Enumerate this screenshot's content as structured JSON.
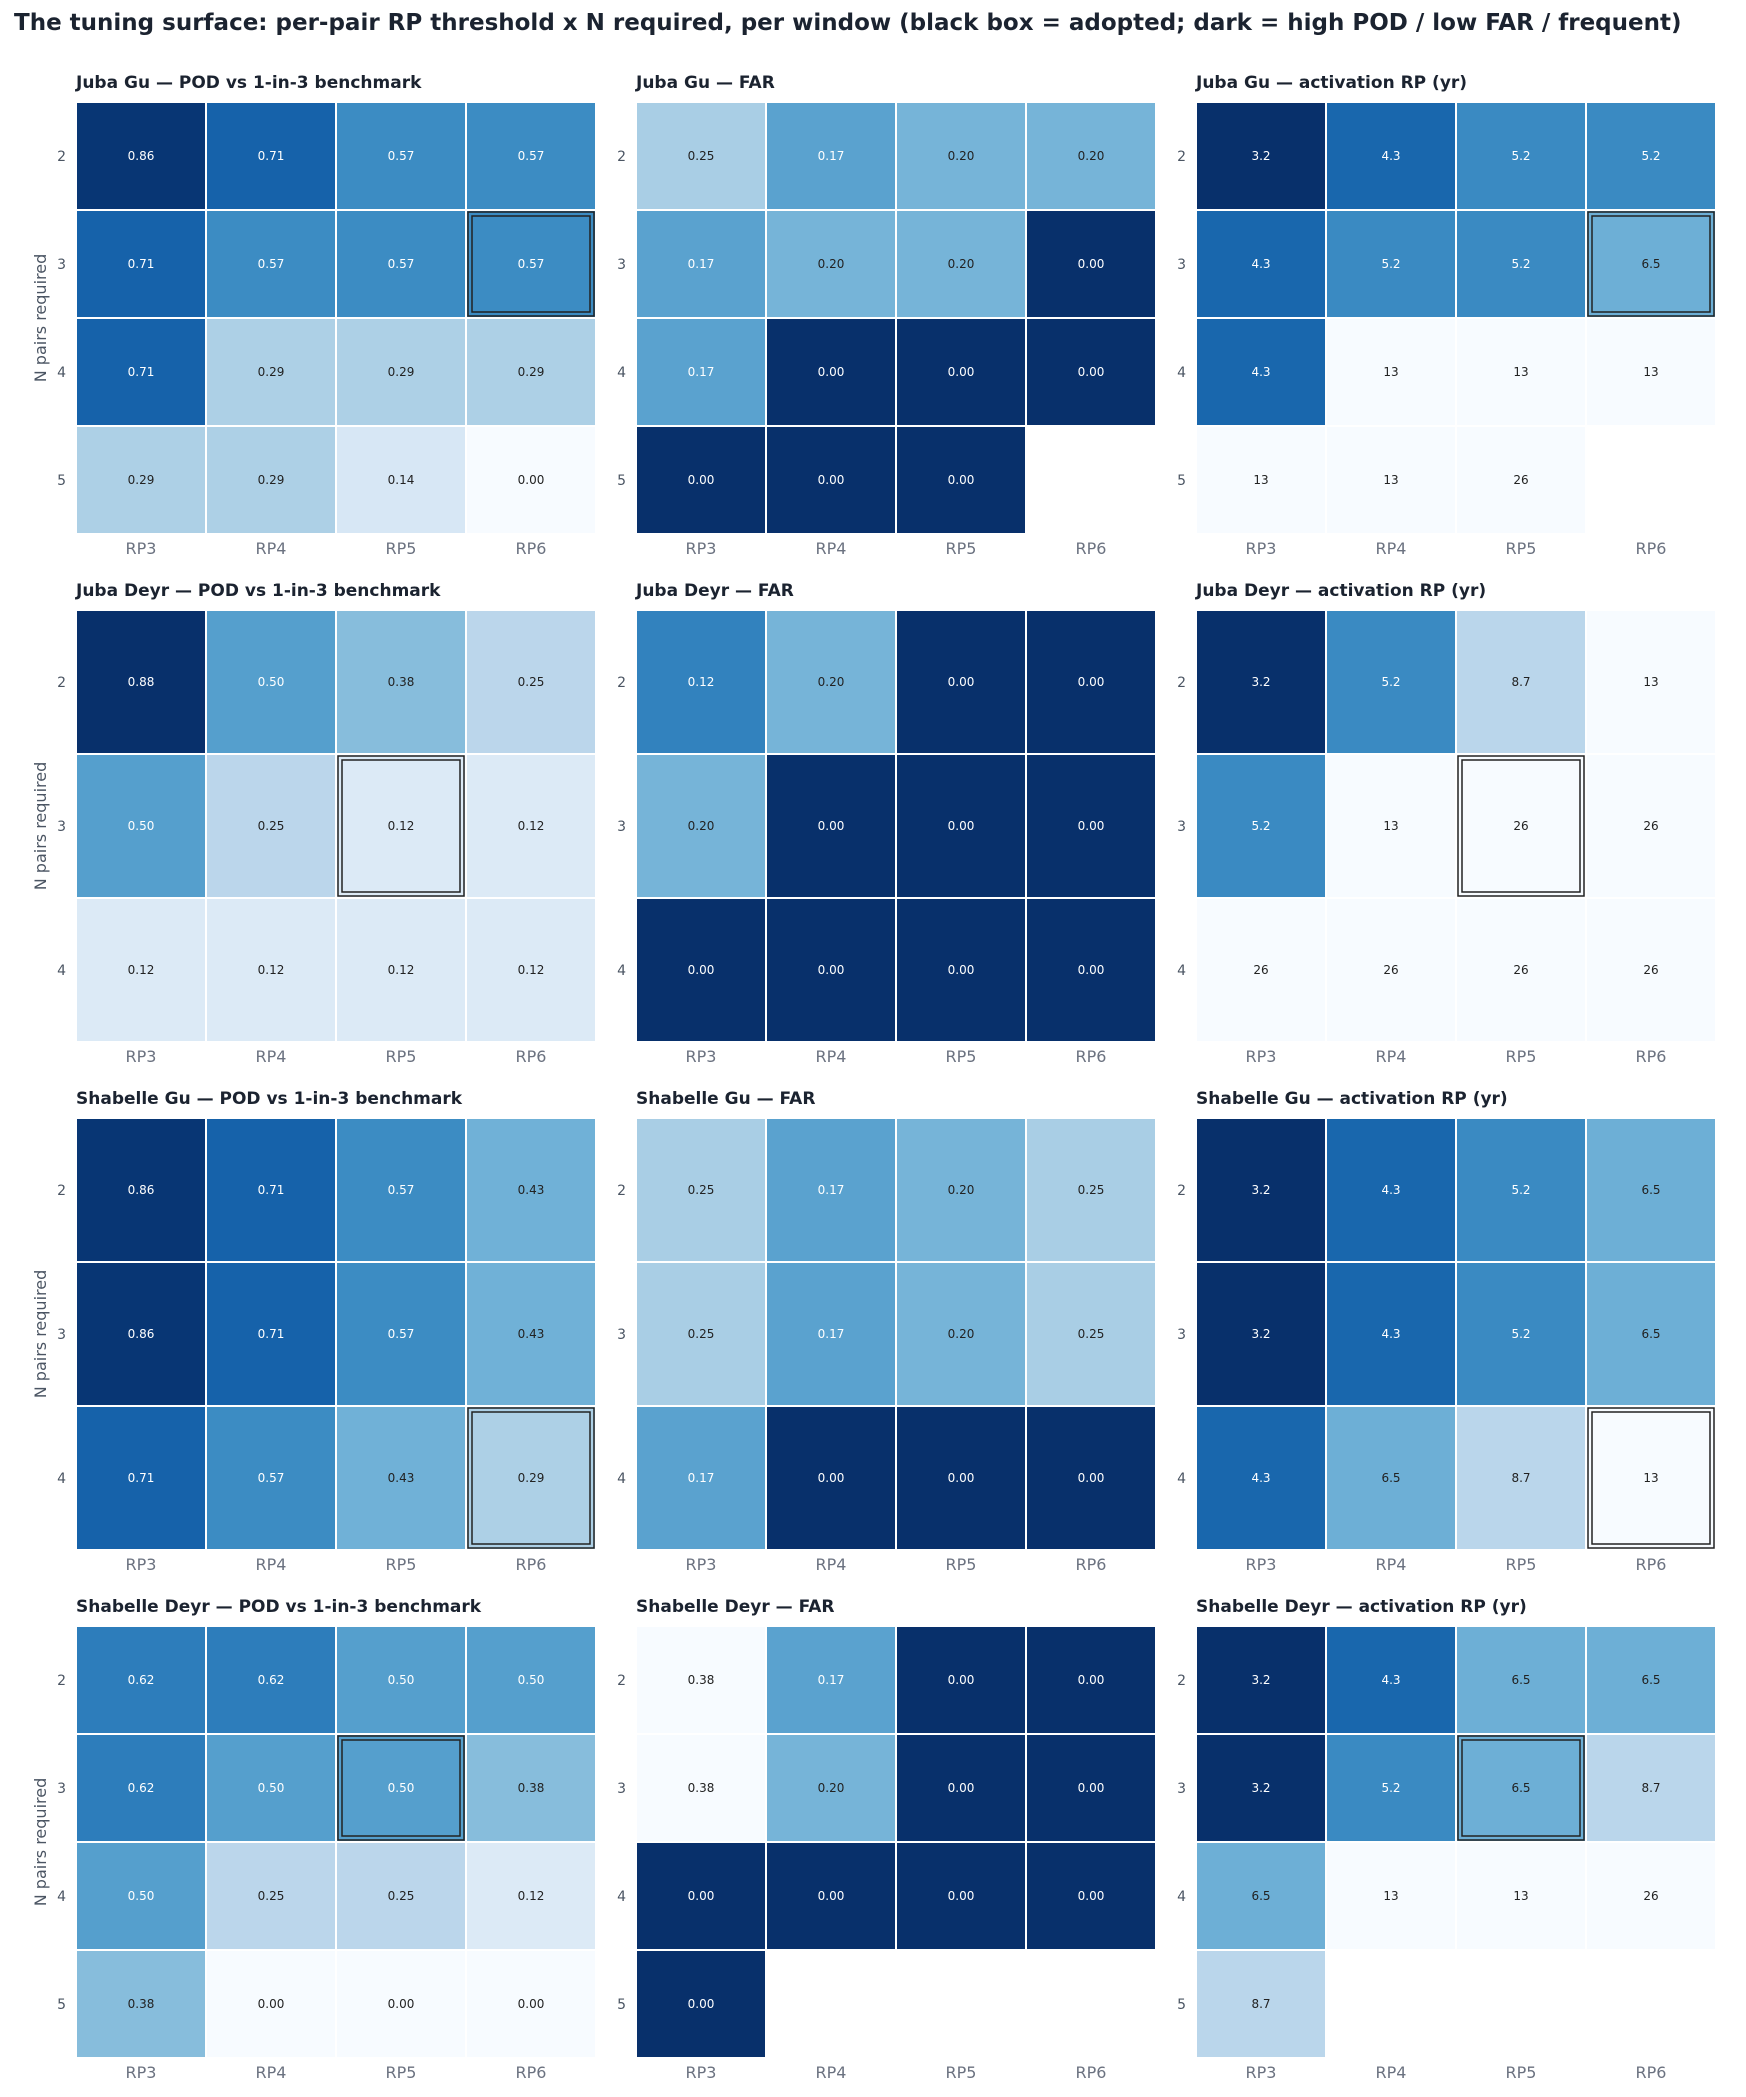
{
  "title": "The tuning surface: per-pair RP threshold x N required, per window (black box = adopted; dark = high POD / low FAR / frequent)",
  "colormap": {
    "light": "#f7fbff",
    "mid": "#6baed6",
    "dark": "#08306b",
    "grid_line": "#ffffff",
    "adopted_box": "#222222",
    "text_dark": "#222222",
    "text_light": "#ffffff"
  },
  "chart_data": [
    {
      "type": "heatmap",
      "title": "Juba Gu — POD vs 1-in-3 benchmark",
      "metric": "POD",
      "ylabel": "N pairs required",
      "x": [
        "RP3",
        "RP4",
        "RP5",
        "RP6"
      ],
      "y": [
        "2",
        "3",
        "4",
        "5"
      ],
      "values": [
        [
          0.86,
          0.71,
          0.57,
          0.57
        ],
        [
          0.71,
          0.57,
          0.57,
          0.57
        ],
        [
          0.71,
          0.29,
          0.29,
          0.29
        ],
        [
          0.29,
          0.29,
          0.14,
          0.0
        ]
      ],
      "labels": [
        [
          "0.86",
          "0.71",
          "0.57",
          "0.57"
        ],
        [
          "0.71",
          "0.57",
          "0.57",
          "0.57"
        ],
        [
          "0.71",
          "0.29",
          "0.29",
          "0.29"
        ],
        [
          "0.29",
          "0.29",
          "0.14",
          "0.00"
        ]
      ],
      "adopted": {
        "x": "RP6",
        "y": "3"
      }
    },
    {
      "type": "heatmap",
      "title": "Juba Gu — FAR",
      "metric": "FAR",
      "ylabel": "",
      "x": [
        "RP3",
        "RP4",
        "RP5",
        "RP6"
      ],
      "y": [
        "2",
        "3",
        "4",
        "5"
      ],
      "values": [
        [
          0.25,
          0.17,
          0.2,
          0.2
        ],
        [
          0.17,
          0.2,
          0.2,
          0.0
        ],
        [
          0.17,
          0.0,
          0.0,
          0.0
        ],
        [
          0.0,
          0.0,
          0.0,
          null
        ]
      ],
      "labels": [
        [
          "0.25",
          "0.17",
          "0.20",
          "0.20"
        ],
        [
          "0.17",
          "0.20",
          "0.20",
          "0.00"
        ],
        [
          "0.17",
          "0.00",
          "0.00",
          "0.00"
        ],
        [
          "0.00",
          "0.00",
          "0.00",
          ""
        ]
      ],
      "adopted": null
    },
    {
      "type": "heatmap",
      "title": "Juba Gu — activation RP (yr)",
      "metric": "RP",
      "ylabel": "",
      "x": [
        "RP3",
        "RP4",
        "RP5",
        "RP6"
      ],
      "y": [
        "2",
        "3",
        "4",
        "5"
      ],
      "values": [
        [
          3.2,
          4.3,
          5.2,
          5.2
        ],
        [
          4.3,
          5.2,
          5.2,
          6.5
        ],
        [
          4.3,
          13,
          13,
          13
        ],
        [
          13,
          13,
          26,
          null
        ]
      ],
      "labels": [
        [
          "3.2",
          "4.3",
          "5.2",
          "5.2"
        ],
        [
          "4.3",
          "5.2",
          "5.2",
          "6.5"
        ],
        [
          "4.3",
          "13",
          "13",
          "13"
        ],
        [
          "13",
          "13",
          "26",
          ""
        ]
      ],
      "adopted": {
        "x": "RP6",
        "y": "3"
      }
    },
    {
      "type": "heatmap",
      "title": "Juba Deyr — POD vs 1-in-3 benchmark",
      "metric": "POD",
      "ylabel": "N pairs required",
      "x": [
        "RP3",
        "RP4",
        "RP5",
        "RP6"
      ],
      "y": [
        "2",
        "3",
        "4"
      ],
      "values": [
        [
          0.88,
          0.5,
          0.38,
          0.25
        ],
        [
          0.5,
          0.25,
          0.12,
          0.12
        ],
        [
          0.12,
          0.12,
          0.12,
          0.12
        ]
      ],
      "labels": [
        [
          "0.88",
          "0.50",
          "0.38",
          "0.25"
        ],
        [
          "0.50",
          "0.25",
          "0.12",
          "0.12"
        ],
        [
          "0.12",
          "0.12",
          "0.12",
          "0.12"
        ]
      ],
      "adopted": {
        "x": "RP5",
        "y": "3"
      }
    },
    {
      "type": "heatmap",
      "title": "Juba Deyr — FAR",
      "metric": "FAR",
      "ylabel": "",
      "x": [
        "RP3",
        "RP4",
        "RP5",
        "RP6"
      ],
      "y": [
        "2",
        "3",
        "4"
      ],
      "values": [
        [
          0.12,
          0.2,
          0.0,
          0.0
        ],
        [
          0.2,
          0.0,
          0.0,
          0.0
        ],
        [
          0.0,
          0.0,
          0.0,
          0.0
        ]
      ],
      "labels": [
        [
          "0.12",
          "0.20",
          "0.00",
          "0.00"
        ],
        [
          "0.20",
          "0.00",
          "0.00",
          "0.00"
        ],
        [
          "0.00",
          "0.00",
          "0.00",
          "0.00"
        ]
      ],
      "adopted": null
    },
    {
      "type": "heatmap",
      "title": "Juba Deyr — activation RP (yr)",
      "metric": "RP",
      "ylabel": "",
      "x": [
        "RP3",
        "RP4",
        "RP5",
        "RP6"
      ],
      "y": [
        "2",
        "3",
        "4"
      ],
      "values": [
        [
          3.2,
          5.2,
          8.7,
          13
        ],
        [
          5.2,
          13,
          26,
          26
        ],
        [
          26,
          26,
          26,
          26
        ]
      ],
      "labels": [
        [
          "3.2",
          "5.2",
          "8.7",
          "13"
        ],
        [
          "5.2",
          "13",
          "26",
          "26"
        ],
        [
          "26",
          "26",
          "26",
          "26"
        ]
      ],
      "adopted": {
        "x": "RP5",
        "y": "3"
      }
    },
    {
      "type": "heatmap",
      "title": "Shabelle Gu — POD vs 1-in-3 benchmark",
      "metric": "POD",
      "ylabel": "N pairs required",
      "x": [
        "RP3",
        "RP4",
        "RP5",
        "RP6"
      ],
      "y": [
        "2",
        "3",
        "4"
      ],
      "values": [
        [
          0.86,
          0.71,
          0.57,
          0.43
        ],
        [
          0.86,
          0.71,
          0.57,
          0.43
        ],
        [
          0.71,
          0.57,
          0.43,
          0.29
        ]
      ],
      "labels": [
        [
          "0.86",
          "0.71",
          "0.57",
          "0.43"
        ],
        [
          "0.86",
          "0.71",
          "0.57",
          "0.43"
        ],
        [
          "0.71",
          "0.57",
          "0.43",
          "0.29"
        ]
      ],
      "adopted": {
        "x": "RP6",
        "y": "4"
      }
    },
    {
      "type": "heatmap",
      "title": "Shabelle Gu — FAR",
      "metric": "FAR",
      "ylabel": "",
      "x": [
        "RP3",
        "RP4",
        "RP5",
        "RP6"
      ],
      "y": [
        "2",
        "3",
        "4"
      ],
      "values": [
        [
          0.25,
          0.17,
          0.2,
          0.25
        ],
        [
          0.25,
          0.17,
          0.2,
          0.25
        ],
        [
          0.17,
          0.0,
          0.0,
          0.0
        ]
      ],
      "labels": [
        [
          "0.25",
          "0.17",
          "0.20",
          "0.25"
        ],
        [
          "0.25",
          "0.17",
          "0.20",
          "0.25"
        ],
        [
          "0.17",
          "0.00",
          "0.00",
          "0.00"
        ]
      ],
      "adopted": null
    },
    {
      "type": "heatmap",
      "title": "Shabelle Gu — activation RP (yr)",
      "metric": "RP",
      "ylabel": "",
      "x": [
        "RP3",
        "RP4",
        "RP5",
        "RP6"
      ],
      "y": [
        "2",
        "3",
        "4"
      ],
      "values": [
        [
          3.2,
          4.3,
          5.2,
          6.5
        ],
        [
          3.2,
          4.3,
          5.2,
          6.5
        ],
        [
          4.3,
          6.5,
          8.7,
          13
        ]
      ],
      "labels": [
        [
          "3.2",
          "4.3",
          "5.2",
          "6.5"
        ],
        [
          "3.2",
          "4.3",
          "5.2",
          "6.5"
        ],
        [
          "4.3",
          "6.5",
          "8.7",
          "13"
        ]
      ],
      "adopted": {
        "x": "RP6",
        "y": "4"
      }
    },
    {
      "type": "heatmap",
      "title": "Shabelle Deyr — POD vs 1-in-3 benchmark",
      "metric": "POD",
      "ylabel": "N pairs required",
      "x": [
        "RP3",
        "RP4",
        "RP5",
        "RP6"
      ],
      "y": [
        "2",
        "3",
        "4",
        "5"
      ],
      "values": [
        [
          0.62,
          0.62,
          0.5,
          0.5
        ],
        [
          0.62,
          0.5,
          0.5,
          0.38
        ],
        [
          0.5,
          0.25,
          0.25,
          0.12
        ],
        [
          0.38,
          0.0,
          0.0,
          0.0
        ]
      ],
      "labels": [
        [
          "0.62",
          "0.62",
          "0.50",
          "0.50"
        ],
        [
          "0.62",
          "0.50",
          "0.50",
          "0.38"
        ],
        [
          "0.50",
          "0.25",
          "0.25",
          "0.12"
        ],
        [
          "0.38",
          "0.00",
          "0.00",
          "0.00"
        ]
      ],
      "adopted": {
        "x": "RP5",
        "y": "3"
      }
    },
    {
      "type": "heatmap",
      "title": "Shabelle Deyr — FAR",
      "metric": "FAR",
      "ylabel": "",
      "x": [
        "RP3",
        "RP4",
        "RP5",
        "RP6"
      ],
      "y": [
        "2",
        "3",
        "4",
        "5"
      ],
      "values": [
        [
          0.38,
          0.17,
          0.0,
          0.0
        ],
        [
          0.38,
          0.2,
          0.0,
          0.0
        ],
        [
          0.0,
          0.0,
          0.0,
          0.0
        ],
        [
          0.0,
          null,
          null,
          null
        ]
      ],
      "labels": [
        [
          "0.38",
          "0.17",
          "0.00",
          "0.00"
        ],
        [
          "0.38",
          "0.20",
          "0.00",
          "0.00"
        ],
        [
          "0.00",
          "0.00",
          "0.00",
          "0.00"
        ],
        [
          "0.00",
          "",
          "",
          ""
        ]
      ],
      "adopted": null
    },
    {
      "type": "heatmap",
      "title": "Shabelle Deyr — activation RP (yr)",
      "metric": "RP",
      "ylabel": "",
      "x": [
        "RP3",
        "RP4",
        "RP5",
        "RP6"
      ],
      "y": [
        "2",
        "3",
        "4",
        "5"
      ],
      "values": [
        [
          3.2,
          4.3,
          6.5,
          6.5
        ],
        [
          3.2,
          5.2,
          6.5,
          8.7
        ],
        [
          6.5,
          13,
          13,
          26
        ],
        [
          8.7,
          null,
          null,
          null
        ]
      ],
      "labels": [
        [
          "3.2",
          "4.3",
          "6.5",
          "6.5"
        ],
        [
          "3.2",
          "5.2",
          "6.5",
          "8.7"
        ],
        [
          "6.5",
          "13",
          "13",
          "26"
        ],
        [
          "8.7",
          "",
          "",
          ""
        ]
      ],
      "adopted": {
        "x": "RP5",
        "y": "3"
      }
    }
  ]
}
